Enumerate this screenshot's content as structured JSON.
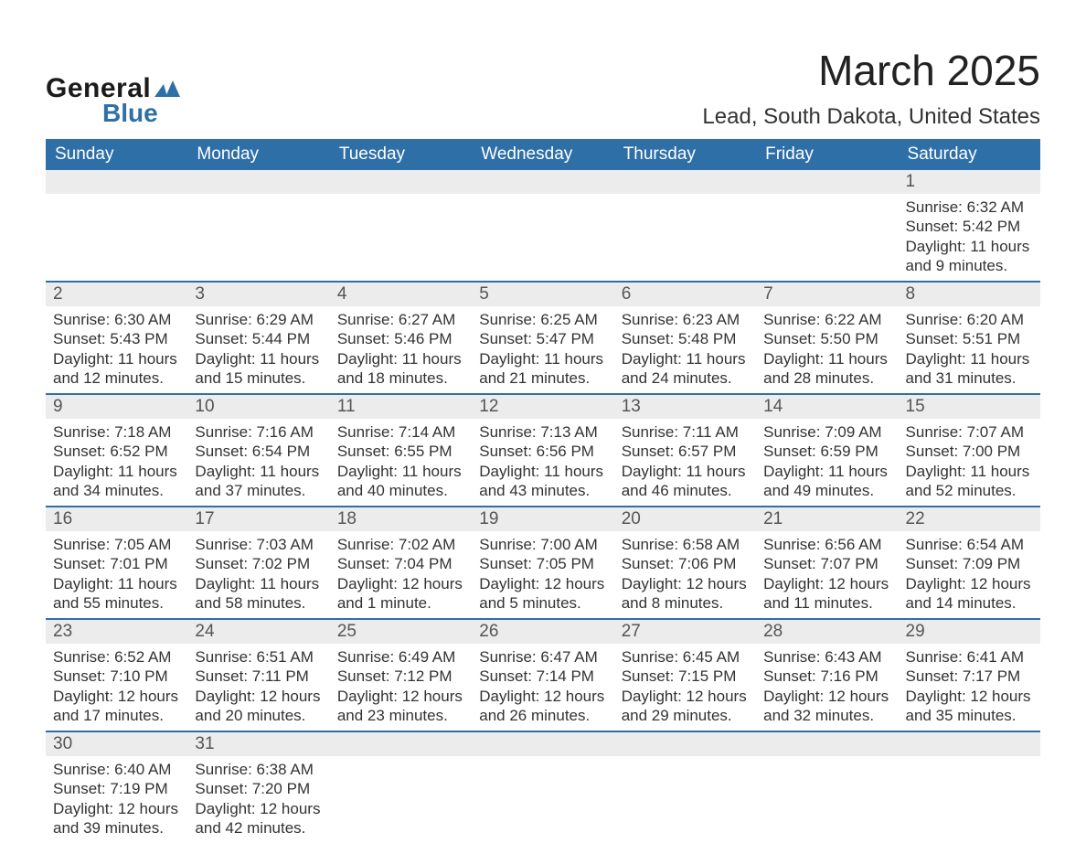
{
  "logo": {
    "general": "General",
    "blue": "Blue"
  },
  "title": "March 2025",
  "location": "Lead, South Dakota, United States",
  "colors": {
    "header_bg": "#2f6fa7",
    "header_text": "#ffffff",
    "daynum_bg": "#ececec",
    "row_border": "#2f6fa7",
    "body_text": "#333333"
  },
  "weekdays": [
    "Sunday",
    "Monday",
    "Tuesday",
    "Wednesday",
    "Thursday",
    "Friday",
    "Saturday"
  ],
  "weeks": [
    [
      null,
      null,
      null,
      null,
      null,
      null,
      {
        "n": "1",
        "sr": "6:32 AM",
        "ss": "5:42 PM",
        "dl": "11 hours and 9 minutes."
      }
    ],
    [
      {
        "n": "2",
        "sr": "6:30 AM",
        "ss": "5:43 PM",
        "dl": "11 hours and 12 minutes."
      },
      {
        "n": "3",
        "sr": "6:29 AM",
        "ss": "5:44 PM",
        "dl": "11 hours and 15 minutes."
      },
      {
        "n": "4",
        "sr": "6:27 AM",
        "ss": "5:46 PM",
        "dl": "11 hours and 18 minutes."
      },
      {
        "n": "5",
        "sr": "6:25 AM",
        "ss": "5:47 PM",
        "dl": "11 hours and 21 minutes."
      },
      {
        "n": "6",
        "sr": "6:23 AM",
        "ss": "5:48 PM",
        "dl": "11 hours and 24 minutes."
      },
      {
        "n": "7",
        "sr": "6:22 AM",
        "ss": "5:50 PM",
        "dl": "11 hours and 28 minutes."
      },
      {
        "n": "8",
        "sr": "6:20 AM",
        "ss": "5:51 PM",
        "dl": "11 hours and 31 minutes."
      }
    ],
    [
      {
        "n": "9",
        "sr": "7:18 AM",
        "ss": "6:52 PM",
        "dl": "11 hours and 34 minutes."
      },
      {
        "n": "10",
        "sr": "7:16 AM",
        "ss": "6:54 PM",
        "dl": "11 hours and 37 minutes."
      },
      {
        "n": "11",
        "sr": "7:14 AM",
        "ss": "6:55 PM",
        "dl": "11 hours and 40 minutes."
      },
      {
        "n": "12",
        "sr": "7:13 AM",
        "ss": "6:56 PM",
        "dl": "11 hours and 43 minutes."
      },
      {
        "n": "13",
        "sr": "7:11 AM",
        "ss": "6:57 PM",
        "dl": "11 hours and 46 minutes."
      },
      {
        "n": "14",
        "sr": "7:09 AM",
        "ss": "6:59 PM",
        "dl": "11 hours and 49 minutes."
      },
      {
        "n": "15",
        "sr": "7:07 AM",
        "ss": "7:00 PM",
        "dl": "11 hours and 52 minutes."
      }
    ],
    [
      {
        "n": "16",
        "sr": "7:05 AM",
        "ss": "7:01 PM",
        "dl": "11 hours and 55 minutes."
      },
      {
        "n": "17",
        "sr": "7:03 AM",
        "ss": "7:02 PM",
        "dl": "11 hours and 58 minutes."
      },
      {
        "n": "18",
        "sr": "7:02 AM",
        "ss": "7:04 PM",
        "dl": "12 hours and 1 minute."
      },
      {
        "n": "19",
        "sr": "7:00 AM",
        "ss": "7:05 PM",
        "dl": "12 hours and 5 minutes."
      },
      {
        "n": "20",
        "sr": "6:58 AM",
        "ss": "7:06 PM",
        "dl": "12 hours and 8 minutes."
      },
      {
        "n": "21",
        "sr": "6:56 AM",
        "ss": "7:07 PM",
        "dl": "12 hours and 11 minutes."
      },
      {
        "n": "22",
        "sr": "6:54 AM",
        "ss": "7:09 PM",
        "dl": "12 hours and 14 minutes."
      }
    ],
    [
      {
        "n": "23",
        "sr": "6:52 AM",
        "ss": "7:10 PM",
        "dl": "12 hours and 17 minutes."
      },
      {
        "n": "24",
        "sr": "6:51 AM",
        "ss": "7:11 PM",
        "dl": "12 hours and 20 minutes."
      },
      {
        "n": "25",
        "sr": "6:49 AM",
        "ss": "7:12 PM",
        "dl": "12 hours and 23 minutes."
      },
      {
        "n": "26",
        "sr": "6:47 AM",
        "ss": "7:14 PM",
        "dl": "12 hours and 26 minutes."
      },
      {
        "n": "27",
        "sr": "6:45 AM",
        "ss": "7:15 PM",
        "dl": "12 hours and 29 minutes."
      },
      {
        "n": "28",
        "sr": "6:43 AM",
        "ss": "7:16 PM",
        "dl": "12 hours and 32 minutes."
      },
      {
        "n": "29",
        "sr": "6:41 AM",
        "ss": "7:17 PM",
        "dl": "12 hours and 35 minutes."
      }
    ],
    [
      {
        "n": "30",
        "sr": "6:40 AM",
        "ss": "7:19 PM",
        "dl": "12 hours and 39 minutes."
      },
      {
        "n": "31",
        "sr": "6:38 AM",
        "ss": "7:20 PM",
        "dl": "12 hours and 42 minutes."
      },
      null,
      null,
      null,
      null,
      null
    ]
  ],
  "labels": {
    "sunrise": "Sunrise: ",
    "sunset": "Sunset: ",
    "daylight": "Daylight: "
  }
}
